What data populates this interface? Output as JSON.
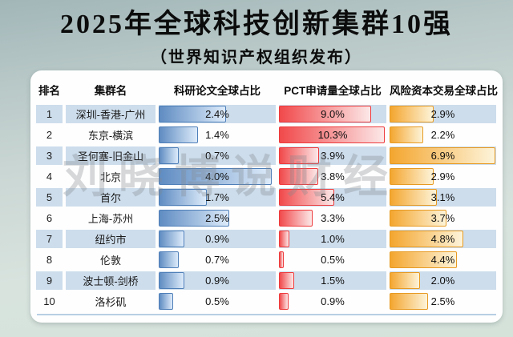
{
  "title": "2025年全球科技创新集群10强",
  "subtitle": "（世界知识产权组织发布）",
  "watermark": "刘晓博说财经",
  "table": {
    "headers": [
      "排名",
      "集群名",
      "科研论文全球占比",
      "PCT申请量全球占比",
      "风险资本交易全球占比"
    ],
    "rows": [
      {
        "rank": "1",
        "name": "深圳-香港-广州",
        "values": [
          "2.4%",
          "9.0%",
          "2.9%"
        ]
      },
      {
        "rank": "2",
        "name": "东京-横滨",
        "values": [
          "1.4%",
          "10.3%",
          "2.2%"
        ]
      },
      {
        "rank": "3",
        "name": "圣何塞-旧金山",
        "values": [
          "0.7%",
          "3.9%",
          "6.9%"
        ]
      },
      {
        "rank": "4",
        "name": "北京",
        "values": [
          "4.0%",
          "3.8%",
          "2.9%"
        ]
      },
      {
        "rank": "5",
        "name": "首尔",
        "values": [
          "1.7%",
          "5.4%",
          "3.1%"
        ]
      },
      {
        "rank": "6",
        "name": "上海-苏州",
        "values": [
          "2.5%",
          "3.3%",
          "3.7%"
        ]
      },
      {
        "rank": "7",
        "name": "纽约市",
        "values": [
          "0.9%",
          "1.0%",
          "4.8%"
        ]
      },
      {
        "rank": "8",
        "name": "伦敦",
        "values": [
          "0.7%",
          "0.5%",
          "4.4%"
        ]
      },
      {
        "rank": "9",
        "name": "波士顿-剑桥",
        "values": [
          "0.9%",
          "1.5%",
          "2.0%"
        ]
      },
      {
        "rank": "10",
        "name": "洛杉矶",
        "values": [
          "0.5%",
          "0.9%",
          "2.5%"
        ]
      }
    ],
    "stripe_color": "#cdddec",
    "divider_color": "#b7cfe4"
  },
  "chart_data": {
    "type": "bar",
    "title": "2025年全球科技创新集群10强",
    "subtitle": "（世界知识产权组织发布）",
    "categories": [
      "深圳-香港-广州",
      "东京-横滨",
      "圣何塞-旧金山",
      "北京",
      "首尔",
      "上海-苏州",
      "纽约市",
      "伦敦",
      "波士顿-剑桥",
      "洛杉矶"
    ],
    "ranks": [
      1,
      2,
      3,
      4,
      5,
      6,
      7,
      8,
      9,
      10
    ],
    "series": [
      {
        "name": "科研论文全球占比",
        "values": [
          2.4,
          1.4,
          0.7,
          4.0,
          1.7,
          2.5,
          0.9,
          0.7,
          0.9,
          0.5
        ],
        "unit": "%",
        "scale_max": 4.15,
        "color_left": "#5f8cc2",
        "color_right": "#ddebfa",
        "color_border": "#4f7fb8"
      },
      {
        "name": "PCT申请量全球占比",
        "values": [
          9.0,
          10.3,
          3.9,
          3.8,
          5.4,
          3.3,
          1.0,
          0.5,
          1.5,
          0.9
        ],
        "unit": "%",
        "scale_max": 10.45,
        "color_left": "#f1494b",
        "color_right": "#fce8e8",
        "color_border": "#ee3b3d"
      },
      {
        "name": "风险资本交易全球占比",
        "values": [
          2.9,
          2.2,
          6.9,
          2.9,
          3.1,
          3.7,
          4.8,
          4.4,
          2.0,
          2.5
        ],
        "unit": "%",
        "scale_max": 6.95,
        "color_left": "#f4a62f",
        "color_right": "#fdf4da",
        "color_border": "#e79a22"
      }
    ],
    "orientation": "horizontal",
    "grid": false,
    "legend_position": "column-headers",
    "value_labels": "centered-in-track"
  }
}
